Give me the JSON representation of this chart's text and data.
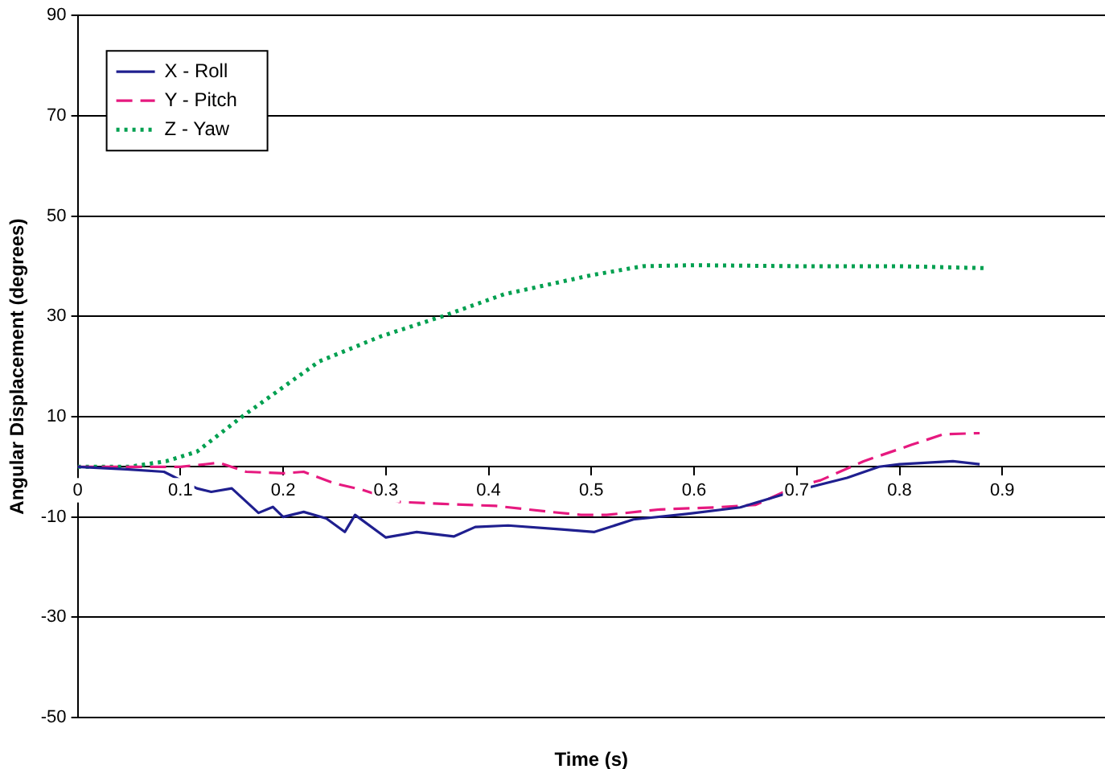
{
  "chart_data": {
    "type": "line",
    "xlabel": "Time (s)",
    "ylabel": "Angular Displacement (degrees)",
    "xlim": [
      0,
      1
    ],
    "xticks": [
      0,
      0.1,
      0.2,
      0.3,
      0.4,
      0.5,
      0.6,
      0.7,
      0.8,
      0.9
    ],
    "ylim": [
      -50,
      90
    ],
    "yticks": [
      -50,
      -30,
      -10,
      10,
      30,
      50,
      70,
      90
    ],
    "grid": "y",
    "legend": "top left",
    "marker": "none",
    "series": [
      {
        "name": "X - Roll",
        "color": "#1f1f8f",
        "line_style": "solid",
        "x": [
          0,
          0.047,
          0.084,
          0.116,
          0.13,
          0.15,
          0.176,
          0.19,
          0.2,
          0.22,
          0.242,
          0.26,
          0.27,
          0.3,
          0.33,
          0.366,
          0.387,
          0.419,
          0.471,
          0.503,
          0.541,
          0.593,
          0.645,
          0.697,
          0.749,
          0.78,
          0.8,
          0.852,
          0.878
        ],
        "values": [
          0,
          -0.5,
          -1,
          -4.3,
          -5,
          -4.3,
          -9.2,
          -8,
          -10,
          -9,
          -10.3,
          -13,
          -9.6,
          -14.1,
          -13,
          -13.9,
          -12,
          -11.7,
          -12.5,
          -13,
          -10.5,
          -9.4,
          -8.1,
          -4.9,
          -2.2,
          0,
          0.5,
          1.1,
          0.5
        ]
      },
      {
        "name": "Y - Pitch",
        "color": "#e6197f",
        "line_style": "dashed",
        "x": [
          0,
          0.1,
          0.138,
          0.164,
          0.2,
          0.22,
          0.25,
          0.277,
          0.313,
          0.355,
          0.407,
          0.46,
          0.49,
          0.515,
          0.567,
          0.62,
          0.66,
          0.697,
          0.723,
          0.765,
          0.812,
          0.843,
          0.878
        ],
        "values": [
          0,
          0,
          0.8,
          -1,
          -1.3,
          -1,
          -3.3,
          -4.6,
          -7,
          -7.4,
          -7.8,
          -9,
          -9.6,
          -9.6,
          -8.5,
          -8.1,
          -7.6,
          -4.1,
          -2.7,
          1.1,
          4.4,
          6.5,
          6.7
        ]
      },
      {
        "name": "Z - Yaw",
        "color": "#00a050",
        "line_style": "dotted",
        "x": [
          0,
          0.05,
          0.086,
          0.116,
          0.16,
          0.235,
          0.295,
          0.355,
          0.415,
          0.5,
          0.55,
          0.6,
          0.7,
          0.8,
          0.884
        ],
        "values": [
          0,
          0,
          1.1,
          3,
          10,
          21,
          26,
          30,
          34.4,
          38.2,
          40,
          40.2,
          40,
          40,
          39.6
        ]
      }
    ]
  }
}
